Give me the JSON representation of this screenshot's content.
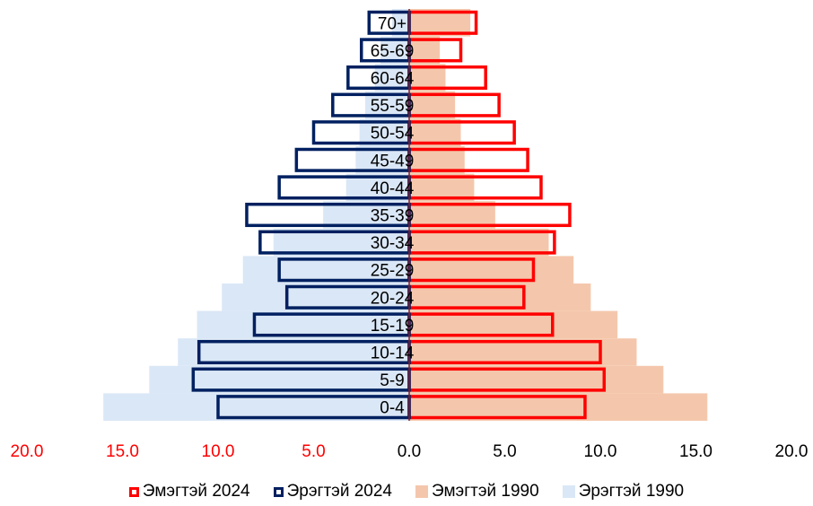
{
  "chart_data": {
    "type": "bar",
    "orientation": "population-pyramid",
    "categories": [
      "0-4",
      "5-9",
      "10-14",
      "15-19",
      "20-24",
      "25-29",
      "30-34",
      "35-39",
      "40-44",
      "45-49",
      "50-54",
      "55-59",
      "60-64",
      "65-69",
      "70+"
    ],
    "series": [
      {
        "name": "Эмэгтэй 2024",
        "side": "right",
        "style": "outline",
        "color": "#ff0000",
        "values": [
          9.2,
          10.2,
          10.0,
          7.5,
          6.0,
          6.5,
          7.6,
          8.4,
          6.9,
          6.2,
          5.5,
          4.7,
          4.0,
          2.7,
          3.5
        ]
      },
      {
        "name": "Эрэгтэй 2024",
        "side": "left",
        "style": "outline",
        "color": "#002060",
        "values": [
          10.0,
          11.3,
          11.0,
          8.1,
          6.4,
          6.8,
          7.8,
          8.5,
          6.8,
          5.9,
          5.0,
          4.0,
          3.2,
          2.5,
          2.1
        ]
      },
      {
        "name": "Эмэгтэй 1990",
        "side": "right",
        "style": "fill",
        "color": "#f4c7ac",
        "values": [
          15.6,
          13.3,
          11.9,
          10.9,
          9.5,
          8.6,
          7.3,
          4.5,
          3.4,
          2.9,
          2.7,
          2.4,
          1.9,
          1.6,
          3.2
        ]
      },
      {
        "name": "Эрэгтэй 1990",
        "side": "left",
        "style": "fill",
        "color": "#dae7f6",
        "values": [
          16.0,
          13.6,
          12.1,
          11.1,
          9.8,
          8.7,
          7.1,
          4.5,
          3.3,
          2.8,
          2.6,
          2.3,
          1.8,
          1.5,
          0.9
        ]
      }
    ],
    "xlim": [
      -20,
      20
    ],
    "xticks": [
      {
        "value": -20,
        "label": "20.0"
      },
      {
        "value": -15,
        "label": "15.0"
      },
      {
        "value": -10,
        "label": "10.0"
      },
      {
        "value": -5,
        "label": "5.0"
      },
      {
        "value": 0,
        "label": "0.0"
      },
      {
        "value": 5,
        "label": "5.0"
      },
      {
        "value": 10,
        "label": "10.0"
      },
      {
        "value": 15,
        "label": "15.0"
      },
      {
        "value": 20,
        "label": "20.0"
      }
    ],
    "tick_colors": {
      "left": "#ff0000",
      "right": "#000000"
    },
    "legend_position": "bottom",
    "grid": false
  },
  "legend": [
    {
      "label": "Эмэгтэй 2024"
    },
    {
      "label": "Эрэгтэй 2024"
    },
    {
      "label": "Эмэгтэй 1990"
    },
    {
      "label": "Эрэгтэй 1990"
    }
  ]
}
